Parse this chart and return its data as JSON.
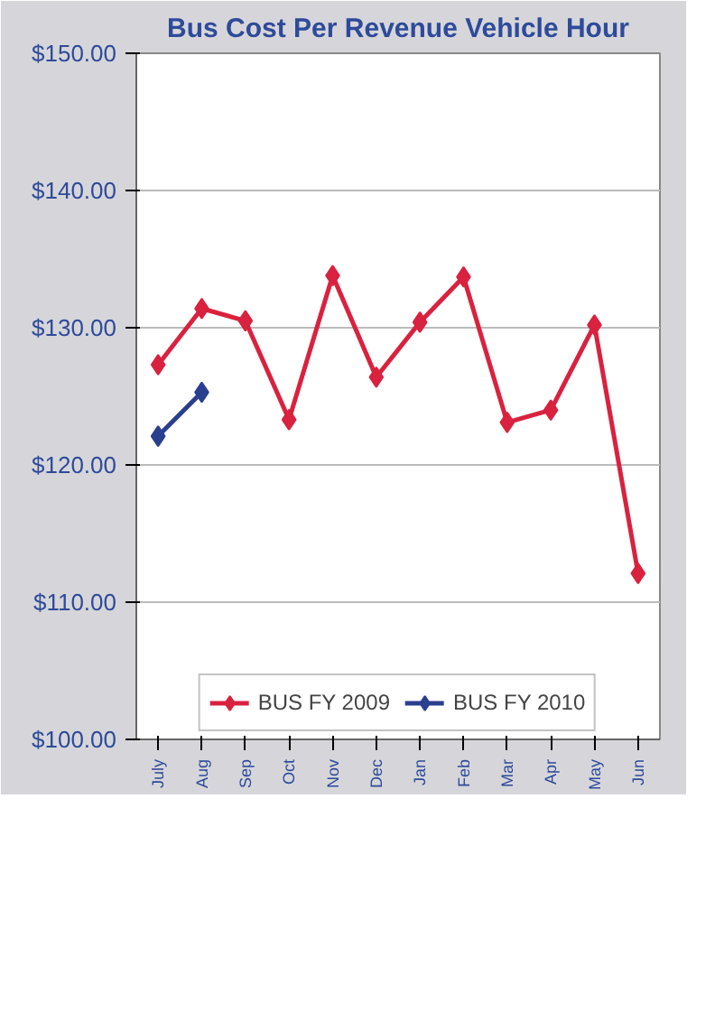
{
  "chart_data": {
    "type": "line",
    "title": "Bus Cost Per Revenue Vehicle Hour",
    "categories": [
      "July",
      "Aug",
      "Sep",
      "Oct",
      "Nov",
      "Dec",
      "Jan",
      "Feb",
      "Mar",
      "Apr",
      "May",
      "Jun"
    ],
    "series": [
      {
        "name": "BUS FY 2009",
        "color": "#d9223f",
        "values": [
          127.3,
          131.4,
          130.5,
          123.3,
          133.8,
          126.4,
          130.4,
          133.7,
          123.1,
          124.0,
          130.2,
          112.1
        ]
      },
      {
        "name": "BUS FY 2010",
        "color": "#2b3f8f",
        "values": [
          122.1,
          125.3,
          null,
          null,
          null,
          null,
          null,
          null,
          null,
          null,
          null,
          null
        ]
      }
    ],
    "ylim": [
      100,
      150
    ],
    "yticks": [
      {
        "value": 100,
        "label": "$100.00"
      },
      {
        "value": 110,
        "label": "$110.00"
      },
      {
        "value": 120,
        "label": "$120.00"
      },
      {
        "value": 130,
        "label": "$130.00"
      },
      {
        "value": 140,
        "label": "$140.00"
      },
      {
        "value": 150,
        "label": "$150.00"
      }
    ],
    "grid": "y",
    "legend": "bottom",
    "marker": "diamond",
    "line_style": "solid"
  }
}
